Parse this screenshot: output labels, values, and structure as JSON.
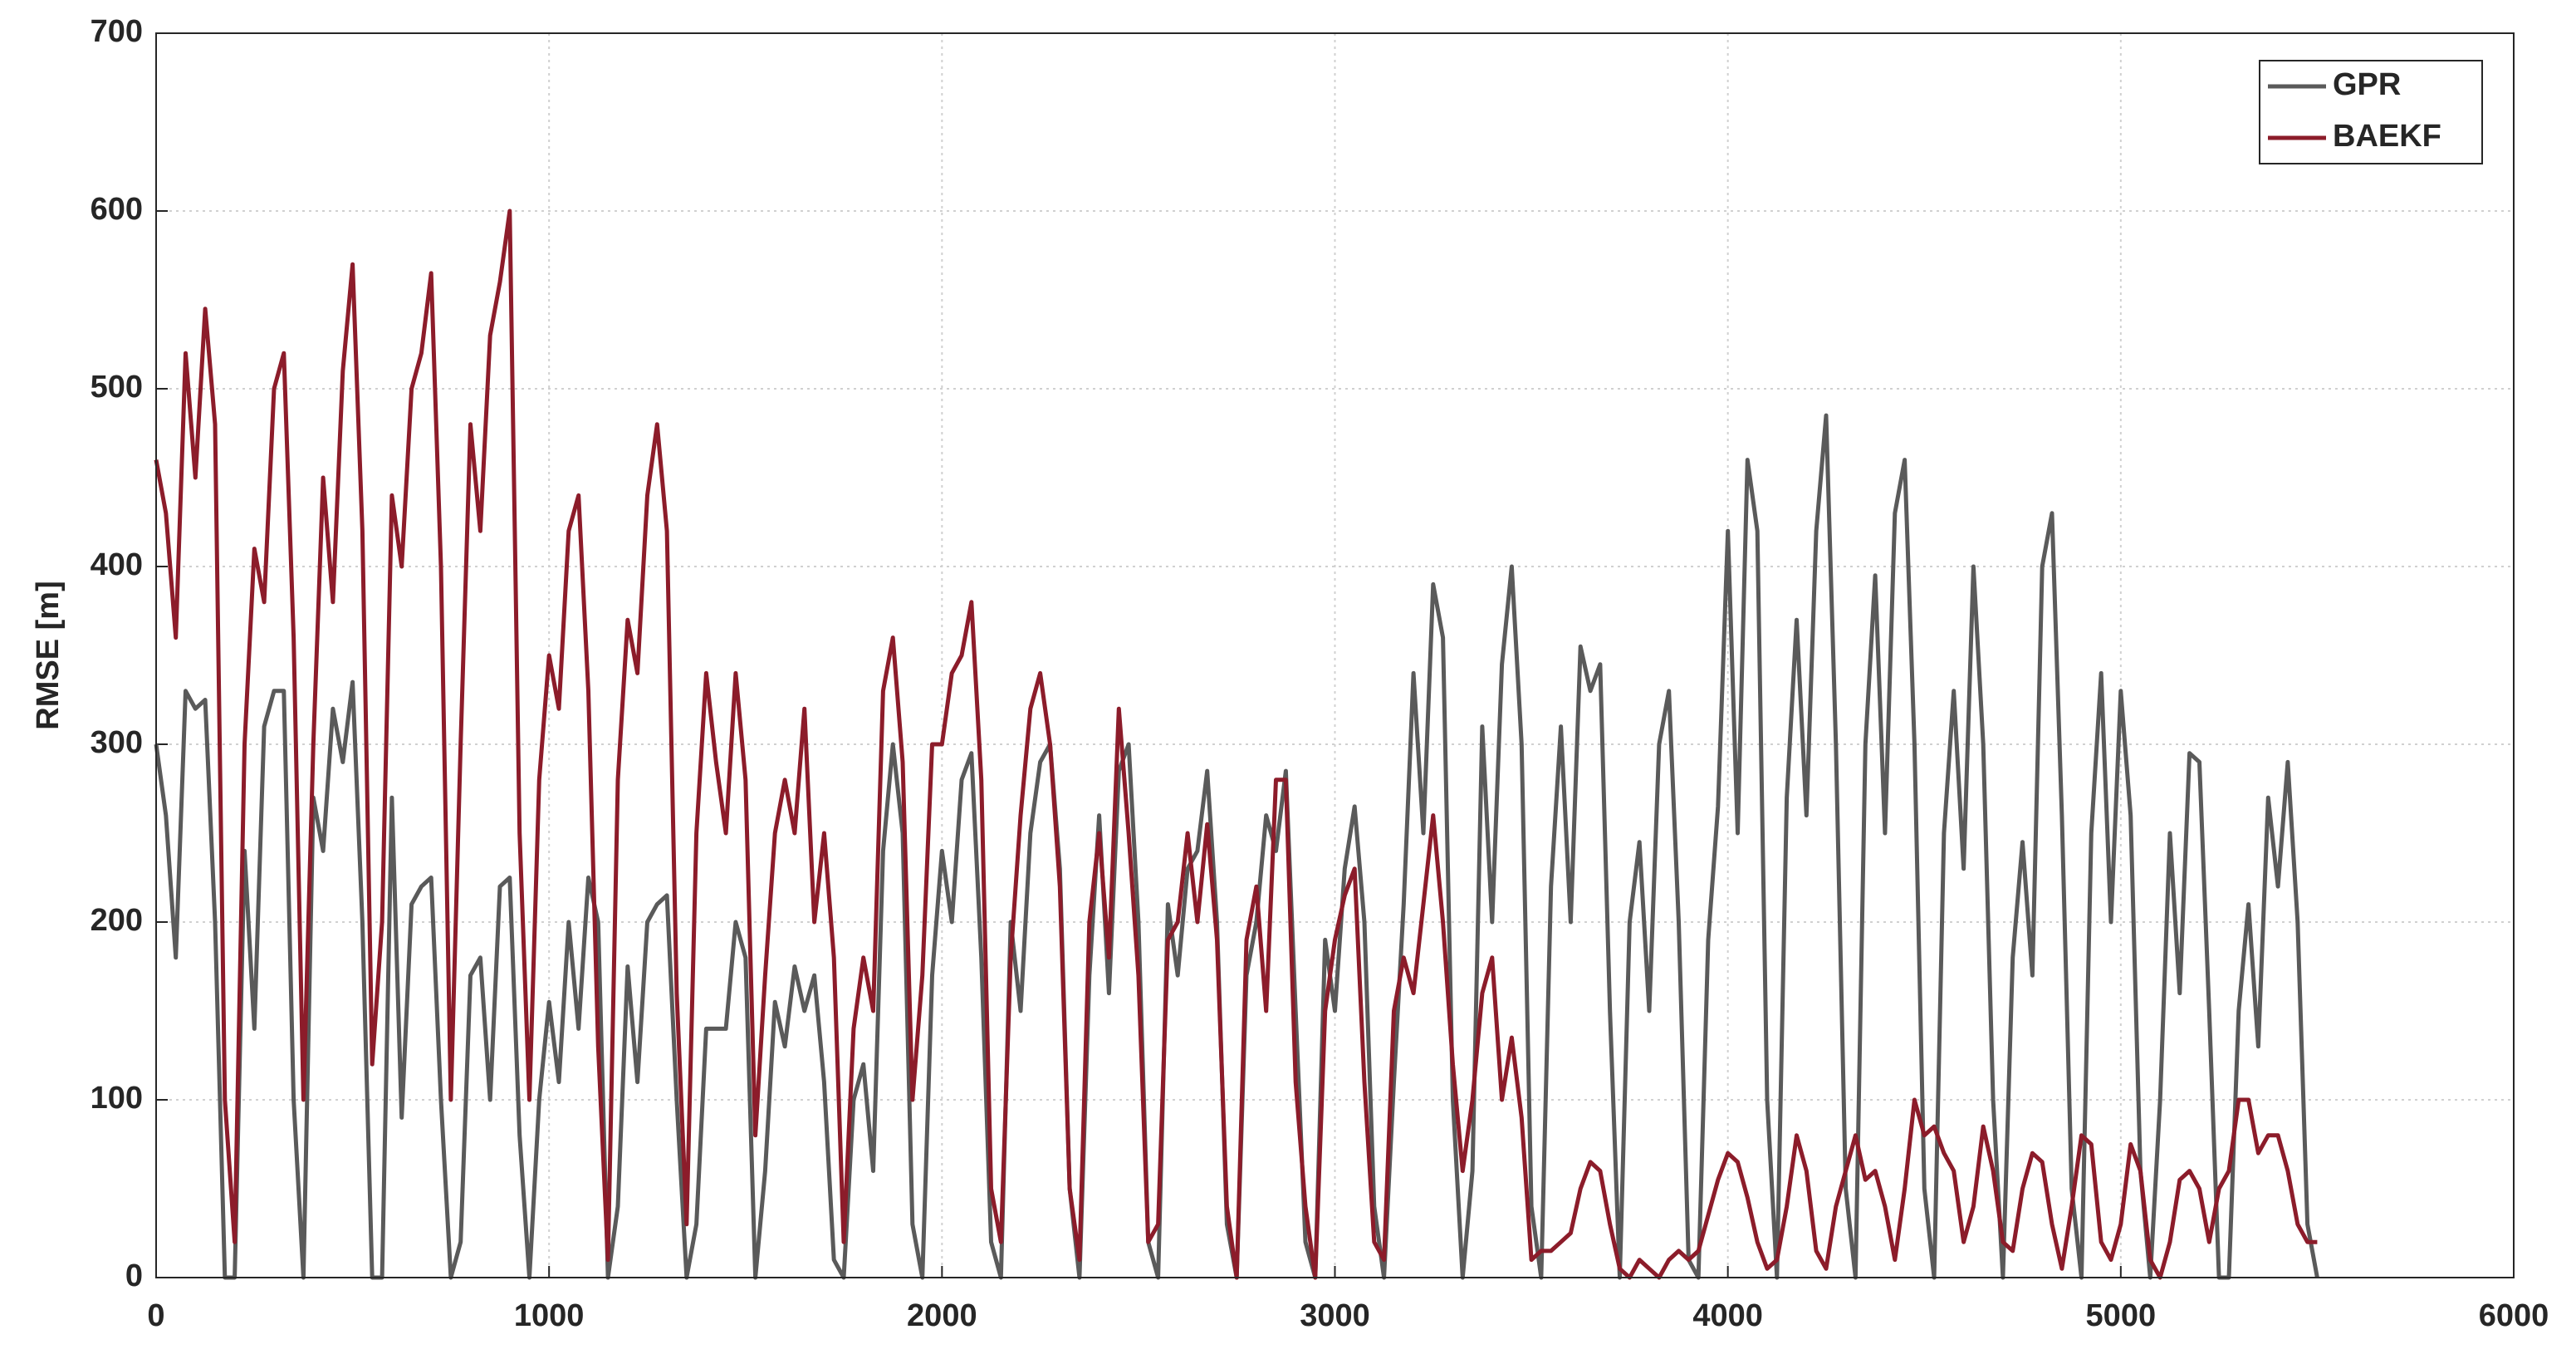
{
  "chart_data": {
    "type": "line",
    "y_label": "RMSE [m]",
    "xlim": [
      0,
      6000
    ],
    "xticks": [
      0,
      1000,
      2000,
      3000,
      4000,
      5000,
      6000
    ],
    "ylim": [
      0,
      700
    ],
    "yticks": [
      0,
      100,
      200,
      300,
      400,
      500,
      600,
      700
    ],
    "grid": true,
    "legend": "upper right",
    "x": [
      0,
      25,
      50,
      75,
      100,
      125,
      150,
      175,
      200,
      225,
      250,
      275,
      300,
      325,
      350,
      375,
      400,
      425,
      450,
      475,
      500,
      525,
      550,
      575,
      600,
      625,
      650,
      675,
      700,
      725,
      750,
      775,
      800,
      825,
      850,
      875,
      900,
      925,
      950,
      975,
      1000,
      1025,
      1050,
      1075,
      1100,
      1125,
      1150,
      1175,
      1200,
      1225,
      1250,
      1275,
      1300,
      1325,
      1350,
      1375,
      1400,
      1425,
      1450,
      1475,
      1500,
      1525,
      1550,
      1575,
      1600,
      1625,
      1650,
      1675,
      1700,
      1725,
      1750,
      1775,
      1800,
      1825,
      1850,
      1875,
      1900,
      1925,
      1950,
      1975,
      2000,
      2025,
      2050,
      2075,
      2100,
      2125,
      2150,
      2175,
      2200,
      2225,
      2250,
      2275,
      2300,
      2325,
      2350,
      2375,
      2400,
      2425,
      2450,
      2475,
      2500,
      2525,
      2550,
      2575,
      2600,
      2625,
      2650,
      2675,
      2700,
      2725,
      2750,
      2775,
      2800,
      2825,
      2850,
      2875,
      2900,
      2925,
      2950,
      2975,
      3000,
      3025,
      3050,
      3075,
      3100,
      3125,
      3150,
      3175,
      3200,
      3225,
      3250,
      3275,
      3300,
      3325,
      3350,
      3375,
      3400,
      3425,
      3450,
      3475,
      3500,
      3525,
      3550,
      3575,
      3600,
      3625,
      3650,
      3675,
      3700,
      3725,
      3750,
      3775,
      3800,
      3825,
      3850,
      3875,
      3900,
      3925,
      3950,
      3975,
      4000,
      4025,
      4050,
      4075,
      4100,
      4125,
      4150,
      4175,
      4200,
      4225,
      4250,
      4275,
      4300,
      4325,
      4350,
      4375,
      4400,
      4425,
      4450,
      4475,
      4500,
      4525,
      4550,
      4575,
      4600,
      4625,
      4650,
      4675,
      4700,
      4725,
      4750,
      4775,
      4800,
      4825,
      4850,
      4875,
      4900,
      4925,
      4950,
      4975,
      5000,
      5025,
      5050,
      5075,
      5100,
      5125,
      5150,
      5175,
      5200,
      5225,
      5250,
      5275,
      5300,
      5325,
      5350,
      5375,
      5400,
      5425,
      5450,
      5475,
      5500
    ],
    "series": [
      {
        "name": "GPR",
        "color": "#5a5a5a",
        "values": [
          300,
          260,
          180,
          330,
          320,
          325,
          200,
          0,
          0,
          240,
          140,
          310,
          330,
          330,
          100,
          0,
          270,
          240,
          320,
          290,
          335,
          200,
          0,
          0,
          270,
          90,
          210,
          220,
          225,
          100,
          0,
          20,
          170,
          180,
          100,
          220,
          225,
          80,
          0,
          100,
          155,
          110,
          200,
          140,
          225,
          200,
          0,
          40,
          175,
          110,
          200,
          210,
          215,
          100,
          0,
          30,
          140,
          140,
          140,
          200,
          180,
          0,
          60,
          155,
          130,
          175,
          150,
          170,
          110,
          10,
          0,
          100,
          120,
          60,
          240,
          300,
          250,
          30,
          0,
          170,
          240,
          200,
          280,
          295,
          180,
          20,
          0,
          200,
          150,
          250,
          290,
          300,
          230,
          50,
          0,
          170,
          260,
          160,
          285,
          300,
          200,
          20,
          0,
          210,
          170,
          230,
          240,
          285,
          200,
          30,
          0,
          170,
          200,
          260,
          240,
          285,
          150,
          20,
          0,
          190,
          150,
          230,
          265,
          200,
          40,
          0,
          110,
          210,
          340,
          250,
          390,
          360,
          100,
          0,
          60,
          310,
          200,
          345,
          400,
          300,
          40,
          0,
          220,
          310,
          200,
          355,
          330,
          345,
          150,
          0,
          200,
          245,
          150,
          300,
          330,
          200,
          10,
          0,
          190,
          265,
          420,
          250,
          460,
          420,
          100,
          0,
          270,
          370,
          260,
          420,
          485,
          300,
          50,
          0,
          300,
          395,
          250,
          430,
          460,
          300,
          50,
          0,
          250,
          330,
          230,
          400,
          300,
          100,
          0,
          180,
          245,
          170,
          400,
          430,
          260,
          50,
          0,
          250,
          340,
          200,
          330,
          260,
          60,
          0,
          100,
          250,
          160,
          295,
          290,
          150,
          0,
          0,
          150,
          210,
          130,
          270,
          220,
          290,
          200,
          30,
          0
        ]
      },
      {
        "name": "BAEKF",
        "color": "#8c1c2a",
        "values": [
          460,
          430,
          360,
          520,
          450,
          545,
          480,
          100,
          20,
          300,
          410,
          380,
          500,
          520,
          360,
          100,
          300,
          450,
          380,
          510,
          570,
          420,
          120,
          200,
          440,
          400,
          500,
          520,
          565,
          400,
          100,
          300,
          480,
          420,
          530,
          560,
          600,
          250,
          100,
          280,
          350,
          320,
          420,
          440,
          330,
          130,
          10,
          280,
          370,
          340,
          440,
          480,
          420,
          160,
          30,
          250,
          340,
          290,
          250,
          340,
          280,
          80,
          170,
          250,
          280,
          250,
          320,
          200,
          250,
          180,
          20,
          140,
          180,
          150,
          330,
          360,
          290,
          100,
          170,
          300,
          300,
          340,
          350,
          380,
          280,
          50,
          20,
          180,
          260,
          320,
          340,
          300,
          220,
          50,
          10,
          200,
          250,
          180,
          320,
          250,
          170,
          20,
          30,
          190,
          200,
          250,
          200,
          255,
          190,
          40,
          0,
          190,
          220,
          150,
          280,
          280,
          110,
          40,
          0,
          150,
          190,
          215,
          230,
          110,
          20,
          10,
          150,
          180,
          160,
          210,
          260,
          200,
          120,
          60,
          100,
          160,
          180,
          100,
          135,
          90,
          10,
          15,
          15,
          20,
          25,
          50,
          65,
          60,
          30,
          5,
          0,
          10,
          5,
          0,
          10,
          15,
          10,
          15,
          35,
          55,
          70,
          65,
          45,
          20,
          5,
          10,
          40,
          80,
          60,
          15,
          5,
          40,
          60,
          80,
          55,
          60,
          40,
          10,
          50,
          100,
          80,
          85,
          70,
          60,
          20,
          40,
          85,
          60,
          20,
          15,
          50,
          70,
          65,
          30,
          5,
          40,
          80,
          75,
          20,
          10,
          30,
          75,
          60,
          10,
          0,
          20,
          55,
          60,
          50,
          20,
          50,
          60,
          100,
          100,
          70,
          80,
          80,
          60,
          30,
          20,
          20
        ]
      }
    ]
  }
}
